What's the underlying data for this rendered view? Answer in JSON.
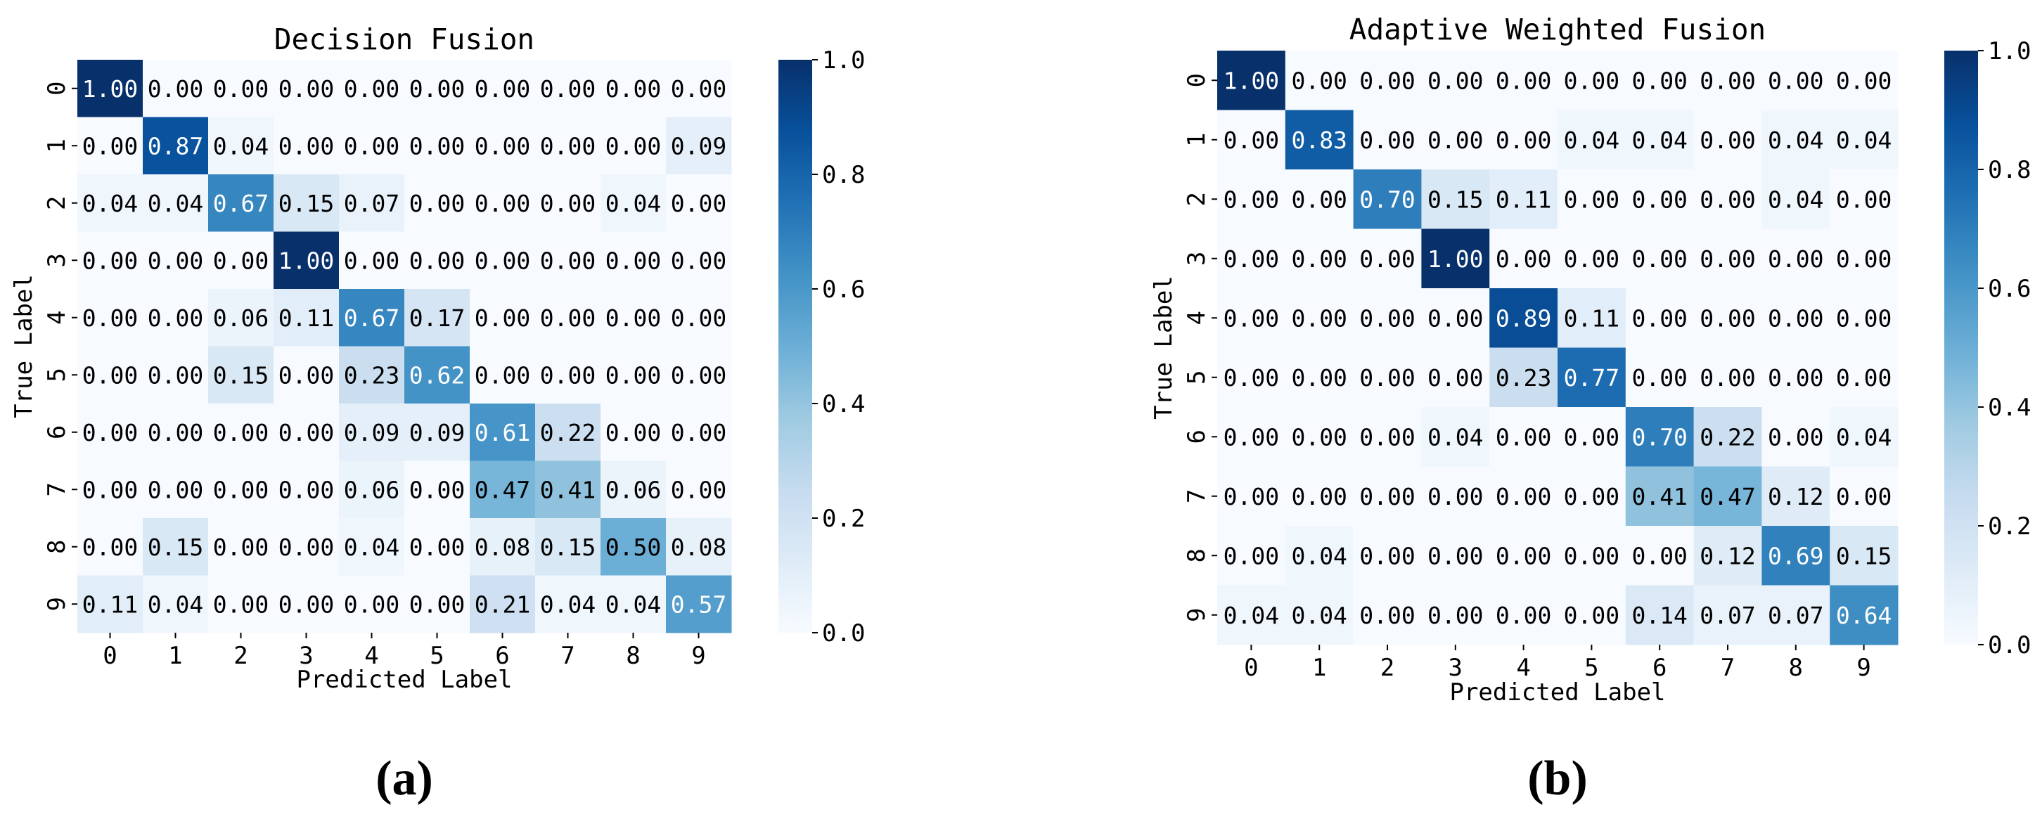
{
  "chart_data": [
    {
      "type": "heatmap",
      "title": "Decision Fusion",
      "caption": "(a)",
      "xlabel": "Predicted Label",
      "ylabel": "True Label",
      "x_ticks": [
        "0",
        "1",
        "2",
        "3",
        "4",
        "5",
        "6",
        "7",
        "8",
        "9"
      ],
      "y_ticks": [
        "0",
        "1",
        "2",
        "3",
        "4",
        "5",
        "6",
        "7",
        "8",
        "9"
      ],
      "colorbar": {
        "range": [
          0.0,
          1.0
        ],
        "ticks": [
          "0.0",
          "0.2",
          "0.4",
          "0.6",
          "0.8",
          "1.0"
        ],
        "colormap": "Blues"
      },
      "matrix": [
        [
          "1.00",
          "0.00",
          "0.00",
          "0.00",
          "0.00",
          "0.00",
          "0.00",
          "0.00",
          "0.00",
          "0.00"
        ],
        [
          "0.00",
          "0.87",
          "0.04",
          "0.00",
          "0.00",
          "0.00",
          "0.00",
          "0.00",
          "0.00",
          "0.09"
        ],
        [
          "0.04",
          "0.04",
          "0.67",
          "0.15",
          "0.07",
          "0.00",
          "0.00",
          "0.00",
          "0.04",
          "0.00"
        ],
        [
          "0.00",
          "0.00",
          "0.00",
          "1.00",
          "0.00",
          "0.00",
          "0.00",
          "0.00",
          "0.00",
          "0.00"
        ],
        [
          "0.00",
          "0.00",
          "0.06",
          "0.11",
          "0.67",
          "0.17",
          "0.00",
          "0.00",
          "0.00",
          "0.00"
        ],
        [
          "0.00",
          "0.00",
          "0.15",
          "0.00",
          "0.23",
          "0.62",
          "0.00",
          "0.00",
          "0.00",
          "0.00"
        ],
        [
          "0.00",
          "0.00",
          "0.00",
          "0.00",
          "0.09",
          "0.09",
          "0.61",
          "0.22",
          "0.00",
          "0.00"
        ],
        [
          "0.00",
          "0.00",
          "0.00",
          "0.00",
          "0.06",
          "0.00",
          "0.47",
          "0.41",
          "0.06",
          "0.00"
        ],
        [
          "0.00",
          "0.15",
          "0.00",
          "0.00",
          "0.04",
          "0.00",
          "0.08",
          "0.15",
          "0.50",
          "0.08"
        ],
        [
          "0.11",
          "0.04",
          "0.00",
          "0.00",
          "0.00",
          "0.00",
          "0.21",
          "0.04",
          "0.04",
          "0.57"
        ]
      ]
    },
    {
      "type": "heatmap",
      "title": "Adaptive Weighted Fusion",
      "caption": "(b)",
      "xlabel": "Predicted Label",
      "ylabel": "True Label",
      "x_ticks": [
        "0",
        "1",
        "2",
        "3",
        "4",
        "5",
        "6",
        "7",
        "8",
        "9"
      ],
      "y_ticks": [
        "0",
        "1",
        "2",
        "3",
        "4",
        "5",
        "6",
        "7",
        "8",
        "9"
      ],
      "colorbar": {
        "range": [
          0.0,
          1.0
        ],
        "ticks": [
          "0.0",
          "0.2",
          "0.4",
          "0.6",
          "0.8",
          "1.0"
        ],
        "colormap": "Blues"
      },
      "matrix": [
        [
          "1.00",
          "0.00",
          "0.00",
          "0.00",
          "0.00",
          "0.00",
          "0.00",
          "0.00",
          "0.00",
          "0.00"
        ],
        [
          "0.00",
          "0.83",
          "0.00",
          "0.00",
          "0.00",
          "0.04",
          "0.04",
          "0.00",
          "0.04",
          "0.04"
        ],
        [
          "0.00",
          "0.00",
          "0.70",
          "0.15",
          "0.11",
          "0.00",
          "0.00",
          "0.00",
          "0.04",
          "0.00"
        ],
        [
          "0.00",
          "0.00",
          "0.00",
          "1.00",
          "0.00",
          "0.00",
          "0.00",
          "0.00",
          "0.00",
          "0.00"
        ],
        [
          "0.00",
          "0.00",
          "0.00",
          "0.00",
          "0.89",
          "0.11",
          "0.00",
          "0.00",
          "0.00",
          "0.00"
        ],
        [
          "0.00",
          "0.00",
          "0.00",
          "0.00",
          "0.23",
          "0.77",
          "0.00",
          "0.00",
          "0.00",
          "0.00"
        ],
        [
          "0.00",
          "0.00",
          "0.00",
          "0.04",
          "0.00",
          "0.00",
          "0.70",
          "0.22",
          "0.00",
          "0.04"
        ],
        [
          "0.00",
          "0.00",
          "0.00",
          "0.00",
          "0.00",
          "0.00",
          "0.41",
          "0.47",
          "0.12",
          "0.00"
        ],
        [
          "0.00",
          "0.04",
          "0.00",
          "0.00",
          "0.00",
          "0.00",
          "0.00",
          "0.12",
          "0.69",
          "0.15"
        ],
        [
          "0.04",
          "0.04",
          "0.00",
          "0.00",
          "0.00",
          "0.00",
          "0.14",
          "0.07",
          "0.07",
          "0.64"
        ]
      ]
    }
  ]
}
